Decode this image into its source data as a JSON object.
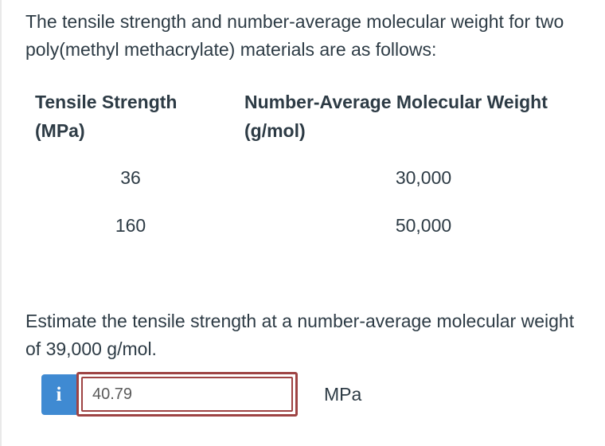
{
  "intro": {
    "text": "The tensile strength and number-average molecular weight for two poly(methyl methacrylate) materials are as follows:"
  },
  "table": {
    "columns": [
      {
        "label": "Tensile Strength",
        "unit": "(MPa)"
      },
      {
        "label": "Number-Average Molecular Weight",
        "unit": "(g/mol)"
      }
    ],
    "rows": [
      {
        "tensile_strength": "36",
        "molecular_weight": "30,000"
      },
      {
        "tensile_strength": "160",
        "molecular_weight": "50,000"
      }
    ]
  },
  "question": {
    "text": "Estimate the tensile strength at a number-average molecular weight of 39,000 g/mol."
  },
  "answer": {
    "info_icon_glyph": "i",
    "value": "40.79",
    "unit": "MPa"
  },
  "colors": {
    "text": "#2d3b45",
    "accent_blue": "#3f8ad2",
    "error_red": "#9e4343",
    "input_text": "#5a5a5a",
    "page_border": "#e9e9e9"
  }
}
